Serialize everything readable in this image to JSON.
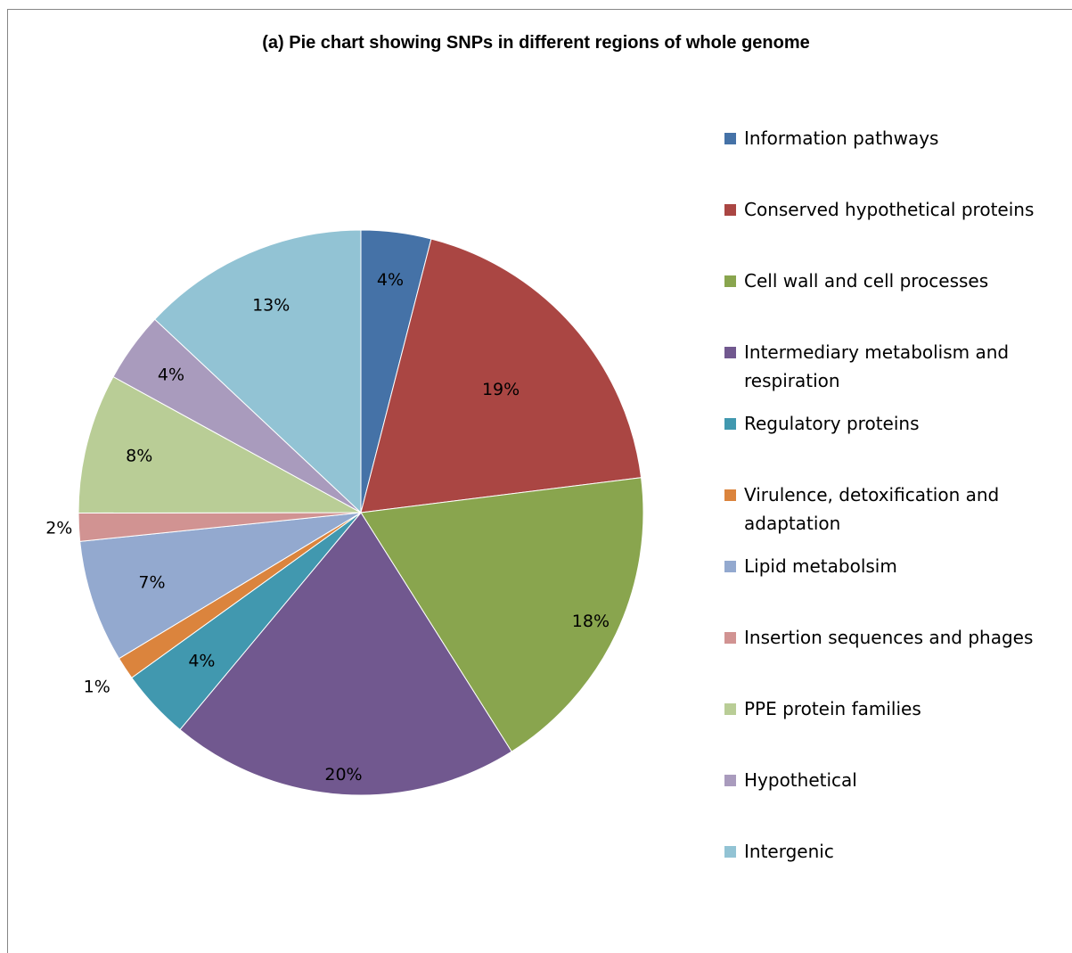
{
  "chart_data": {
    "type": "pie",
    "title": "(a) Pie chart showing SNPs in different regions of whole genome",
    "legend_position": "right",
    "slices": [
      {
        "name": "Information pathways",
        "value": 4,
        "label": "4%",
        "color": "#4572A7"
      },
      {
        "name": "Conserved hypothetical proteins",
        "value": 19,
        "label": "19%",
        "color": "#AA4643"
      },
      {
        "name": "Cell wall and cell processes",
        "value": 18,
        "label": "18%",
        "color": "#89A54E"
      },
      {
        "name": "Intermediary metabolism and respiration",
        "value": 20,
        "label": "20%",
        "color": "#71588F"
      },
      {
        "name": "Regulatory proteins",
        "value": 4,
        "label": "4%",
        "color": "#4198AF"
      },
      {
        "name": "Virulence, detoxification and adaptation",
        "value": 1.3,
        "label": "1%",
        "color": "#DB843D"
      },
      {
        "name": "Lipid metabolsim",
        "value": 7,
        "label": "7%",
        "color": "#93A9CF"
      },
      {
        "name": "Insertion sequences and phages",
        "value": 1.6,
        "label": "2%",
        "color": "#D19392"
      },
      {
        "name": "PPE protein families",
        "value": 8,
        "label": "8%",
        "color": "#B9CD96"
      },
      {
        "name": "Hypothetical",
        "value": 4,
        "label": "4%",
        "color": "#A99BBD"
      },
      {
        "name": "Intergenic",
        "value": 13,
        "label": "13%",
        "color": "#92C3D4"
      }
    ]
  }
}
